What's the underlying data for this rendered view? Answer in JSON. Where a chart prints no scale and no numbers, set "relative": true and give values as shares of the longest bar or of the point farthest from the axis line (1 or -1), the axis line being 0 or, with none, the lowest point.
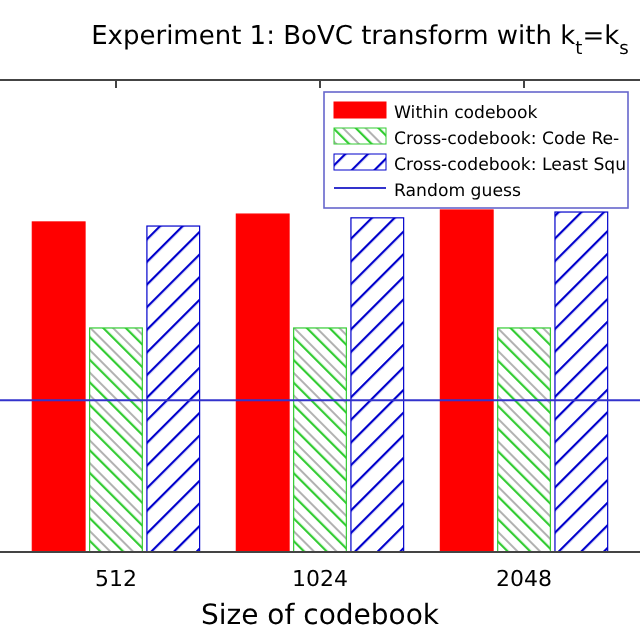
{
  "chart_data": {
    "type": "bar",
    "relative": true,
    "title": "Experiment 1: BoVC transform with k$_{t}$=k$_{s}$",
    "xlabel": "Size of codebook",
    "categories": [
      "512",
      "1024",
      "2048"
    ],
    "series": [
      {
        "name": "Within codebook",
        "color": "#ff0000",
        "values": [
          0.965,
          0.988,
          1
        ]
      },
      {
        "name": "Cross-codebook: Code Re-",
        "color": "#33cc33",
        "values": [
          0.655,
          0.655,
          0.655
        ]
      },
      {
        "name": "Cross-codebook: Least Squ",
        "color": "#0000cc",
        "values": [
          0.953,
          0.977,
          0.994
        ]
      }
    ],
    "ref_lines": [
      {
        "axis": "y",
        "value": 0.444,
        "label": "Random guess",
        "color": "#3333cc"
      }
    ],
    "legend": "top right"
  }
}
